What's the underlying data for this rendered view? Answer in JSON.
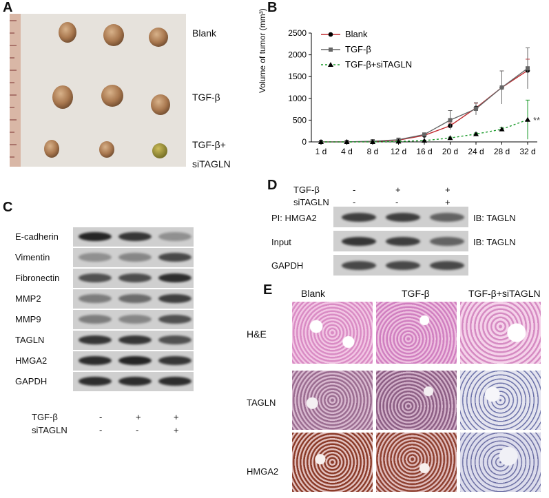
{
  "panels": {
    "a": "A",
    "b": "B",
    "c": "C",
    "d": "D",
    "e": "E"
  },
  "panel_a": {
    "groups": [
      "Blank",
      "TGF-β",
      "TGF-β+",
      "siTAGLN"
    ]
  },
  "chart_data": {
    "type": "line",
    "title": "",
    "xlabel": "",
    "ylabel": "Volume of tumor (mm³)",
    "categories": [
      "1 d",
      "4 d",
      "8 d",
      "12 d",
      "16 d",
      "20 d",
      "24 d",
      "28 d",
      "32 d"
    ],
    "ylim": [
      0,
      2500
    ],
    "yticks": [
      0,
      500,
      1000,
      1500,
      2000,
      2500
    ],
    "legend_position": "top-left",
    "series": [
      {
        "name": "Blank",
        "color": "#c0282d",
        "marker": "circle",
        "values": [
          0,
          0,
          10,
          40,
          150,
          370,
          780,
          1250,
          1640
        ],
        "err": [
          0,
          0,
          5,
          10,
          20,
          60,
          110,
          380,
          260
        ]
      },
      {
        "name": "TGF-β",
        "color": "#666666",
        "marker": "square",
        "values": [
          0,
          0,
          15,
          50,
          170,
          500,
          760,
          1250,
          1690
        ],
        "err": [
          0,
          0,
          5,
          10,
          25,
          220,
          140,
          380,
          470
        ]
      },
      {
        "name": "TGF-β+siTAGLN",
        "color": "#1a9a2a",
        "marker": "triangle",
        "dashed": true,
        "values": [
          0,
          0,
          0,
          10,
          30,
          90,
          180,
          290,
          510
        ],
        "err": [
          0,
          0,
          0,
          5,
          8,
          20,
          25,
          40,
          450
        ]
      }
    ],
    "annotation": "**"
  },
  "panel_c": {
    "rows": [
      "E-cadherin",
      "Vimentin",
      "Fibronectin",
      "MMP2",
      "MMP9",
      "TAGLN",
      "HMGA2",
      "GAPDH"
    ],
    "treat_labels": [
      "TGF-β",
      "siTAGLN"
    ],
    "tgf_signs": [
      "-",
      "+",
      "+"
    ],
    "si_signs": [
      "-",
      "-",
      "+"
    ]
  },
  "panel_d": {
    "treat_labels": [
      "TGF-β",
      "siTAGLN"
    ],
    "tgf_signs": [
      "-",
      "+",
      "+"
    ],
    "si_signs": [
      "-",
      "-",
      "+"
    ],
    "left_labels": [
      "PI: HMGA2",
      "Input",
      "GAPDH"
    ],
    "right_labels": [
      "IB: TAGLN",
      "IB: TAGLN"
    ]
  },
  "panel_e": {
    "columns": [
      "Blank",
      "TGF-β",
      "TGF-β+siTAGLN"
    ],
    "rows": [
      "H&E",
      "TAGLN",
      "HMGA2"
    ]
  }
}
